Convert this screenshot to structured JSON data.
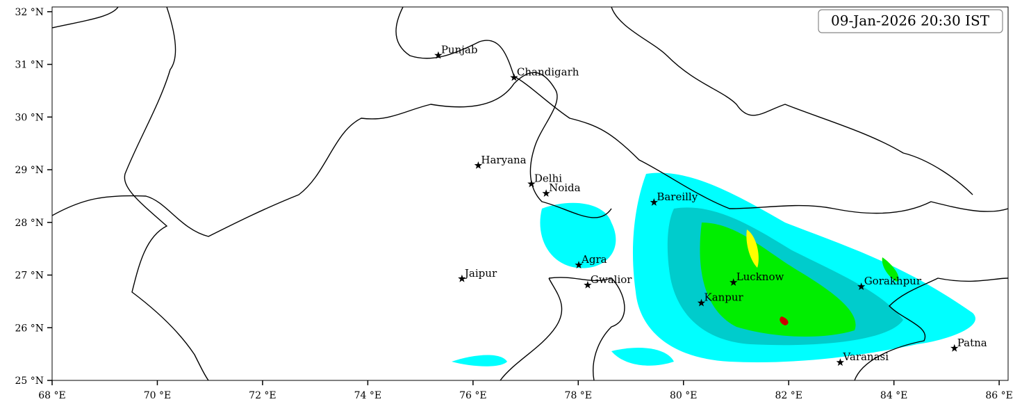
{
  "timestamp": "09-Jan-2026 20:30 IST",
  "map": {
    "xlim": [
      68,
      86.17
    ],
    "ylim": [
      25,
      32.09
    ],
    "xticks": [
      {
        "value": 68,
        "label": "68 °E"
      },
      {
        "value": 70,
        "label": "70 °E"
      },
      {
        "value": 72,
        "label": "72 °E"
      },
      {
        "value": 74,
        "label": "74 °E"
      },
      {
        "value": 76,
        "label": "76 °E"
      },
      {
        "value": 78,
        "label": "78 °E"
      },
      {
        "value": 80,
        "label": "80 °E"
      },
      {
        "value": 82,
        "label": "82 °E"
      },
      {
        "value": 84,
        "label": "84 °E"
      },
      {
        "value": 86,
        "label": "86 °E"
      }
    ],
    "yticks": [
      {
        "value": 25,
        "label": "25 °N"
      },
      {
        "value": 26,
        "label": "26 °N"
      },
      {
        "value": 27,
        "label": "27 °N"
      },
      {
        "value": 28,
        "label": "28 °N"
      },
      {
        "value": 29,
        "label": "29 °N"
      },
      {
        "value": 30,
        "label": "30 °N"
      },
      {
        "value": 31,
        "label": "31 °N"
      },
      {
        "value": 32,
        "label": "32 °N"
      }
    ],
    "cities": [
      {
        "name": "Punjab",
        "lon": 75.34,
        "lat": 31.17
      },
      {
        "name": "Chandigarh",
        "lon": 76.78,
        "lat": 30.75
      },
      {
        "name": "Haryana",
        "lon": 76.1,
        "lat": 29.08
      },
      {
        "name": "Delhi",
        "lon": 77.11,
        "lat": 28.73
      },
      {
        "name": "Noida",
        "lon": 77.39,
        "lat": 28.55
      },
      {
        "name": "Bareilly",
        "lon": 79.44,
        "lat": 28.38
      },
      {
        "name": "Agra",
        "lon": 78.01,
        "lat": 27.19
      },
      {
        "name": "Jaipur",
        "lon": 75.79,
        "lat": 26.93
      },
      {
        "name": "Gwalior",
        "lon": 78.18,
        "lat": 26.81
      },
      {
        "name": "Lucknow",
        "lon": 80.95,
        "lat": 26.86
      },
      {
        "name": "Kanpur",
        "lon": 80.34,
        "lat": 26.47
      },
      {
        "name": "Gorakhpur",
        "lon": 83.38,
        "lat": 26.78
      },
      {
        "name": "Varanasi",
        "lon": 82.98,
        "lat": 25.34
      },
      {
        "name": "Patna",
        "lon": 85.15,
        "lat": 25.61
      }
    ]
  }
}
